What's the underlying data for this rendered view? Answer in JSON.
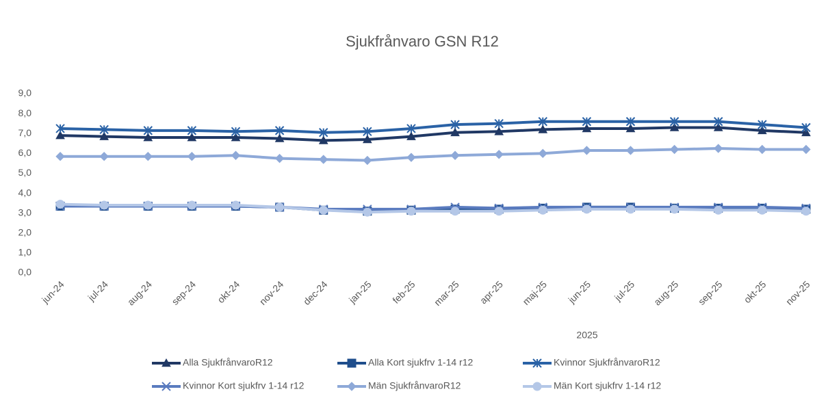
{
  "chart_data": {
    "type": "line",
    "title": "Sjukfrånvaro GSN R12",
    "annotations": [
      "2025"
    ],
    "categories": [
      "jun-24",
      "jul-24",
      "aug-24",
      "sep-24",
      "okt-24",
      "nov-24",
      "dec-24",
      "jan-25",
      "feb-25",
      "mar-25",
      "apr-25",
      "maj-25",
      "jun-25",
      "jul-25",
      "aug-25",
      "sep-25",
      "okt-25",
      "nov-25"
    ],
    "ylim": [
      0,
      9
    ],
    "yticks": [
      {
        "value": 0,
        "label": "0,0"
      },
      {
        "value": 1,
        "label": "1,0"
      },
      {
        "value": 2,
        "label": "2,0"
      },
      {
        "value": 3,
        "label": "3,0"
      },
      {
        "value": 4,
        "label": "4,0"
      },
      {
        "value": 5,
        "label": "5,0"
      },
      {
        "value": 6,
        "label": "6,0"
      },
      {
        "value": 7,
        "label": "7,0"
      },
      {
        "value": 8,
        "label": "8,0"
      },
      {
        "value": 9,
        "label": "9,0"
      }
    ],
    "grid": false,
    "legend": "bottom",
    "series": [
      {
        "name": "Alla SjukfrånvaroR12",
        "color": "#203864",
        "marker": "triangle",
        "values": [
          6.9,
          6.85,
          6.8,
          6.8,
          6.8,
          6.75,
          6.65,
          6.7,
          6.85,
          7.05,
          7.1,
          7.2,
          7.25,
          7.25,
          7.3,
          7.3,
          7.15,
          7.05
        ]
      },
      {
        "name": "Alla Kort sjukfrv 1-14 r12",
        "color": "#1f4e8c",
        "marker": "square",
        "values": [
          3.35,
          3.35,
          3.35,
          3.35,
          3.35,
          3.3,
          3.15,
          3.1,
          3.15,
          3.2,
          3.2,
          3.25,
          3.3,
          3.3,
          3.25,
          3.25,
          3.25,
          3.2
        ]
      },
      {
        "name": "Kvinnor SjukfrånvaroR12",
        "color": "#2a62a6",
        "marker": "star",
        "values": [
          7.25,
          7.2,
          7.15,
          7.15,
          7.1,
          7.15,
          7.05,
          7.1,
          7.25,
          7.45,
          7.5,
          7.6,
          7.6,
          7.6,
          7.6,
          7.6,
          7.45,
          7.3
        ]
      },
      {
        "name": "Kvinnor Kort sjukfrv 1-14 r12",
        "color": "#5a7bbf",
        "marker": "x",
        "values": [
          3.35,
          3.35,
          3.35,
          3.35,
          3.35,
          3.3,
          3.2,
          3.2,
          3.2,
          3.3,
          3.25,
          3.3,
          3.3,
          3.3,
          3.3,
          3.3,
          3.3,
          3.25
        ]
      },
      {
        "name": "Män SjukfrånvaroR12",
        "color": "#8ea9d8",
        "marker": "diamond",
        "values": [
          5.85,
          5.85,
          5.85,
          5.85,
          5.9,
          5.75,
          5.7,
          5.65,
          5.8,
          5.9,
          5.95,
          6.0,
          6.15,
          6.15,
          6.2,
          6.25,
          6.2,
          6.2
        ]
      },
      {
        "name": "Män Kort sjukfrv 1-14 r12",
        "color": "#b4c7e7",
        "marker": "circle",
        "values": [
          3.45,
          3.4,
          3.4,
          3.4,
          3.4,
          3.3,
          3.15,
          3.05,
          3.1,
          3.1,
          3.1,
          3.15,
          3.2,
          3.2,
          3.2,
          3.15,
          3.15,
          3.1
        ]
      }
    ]
  }
}
